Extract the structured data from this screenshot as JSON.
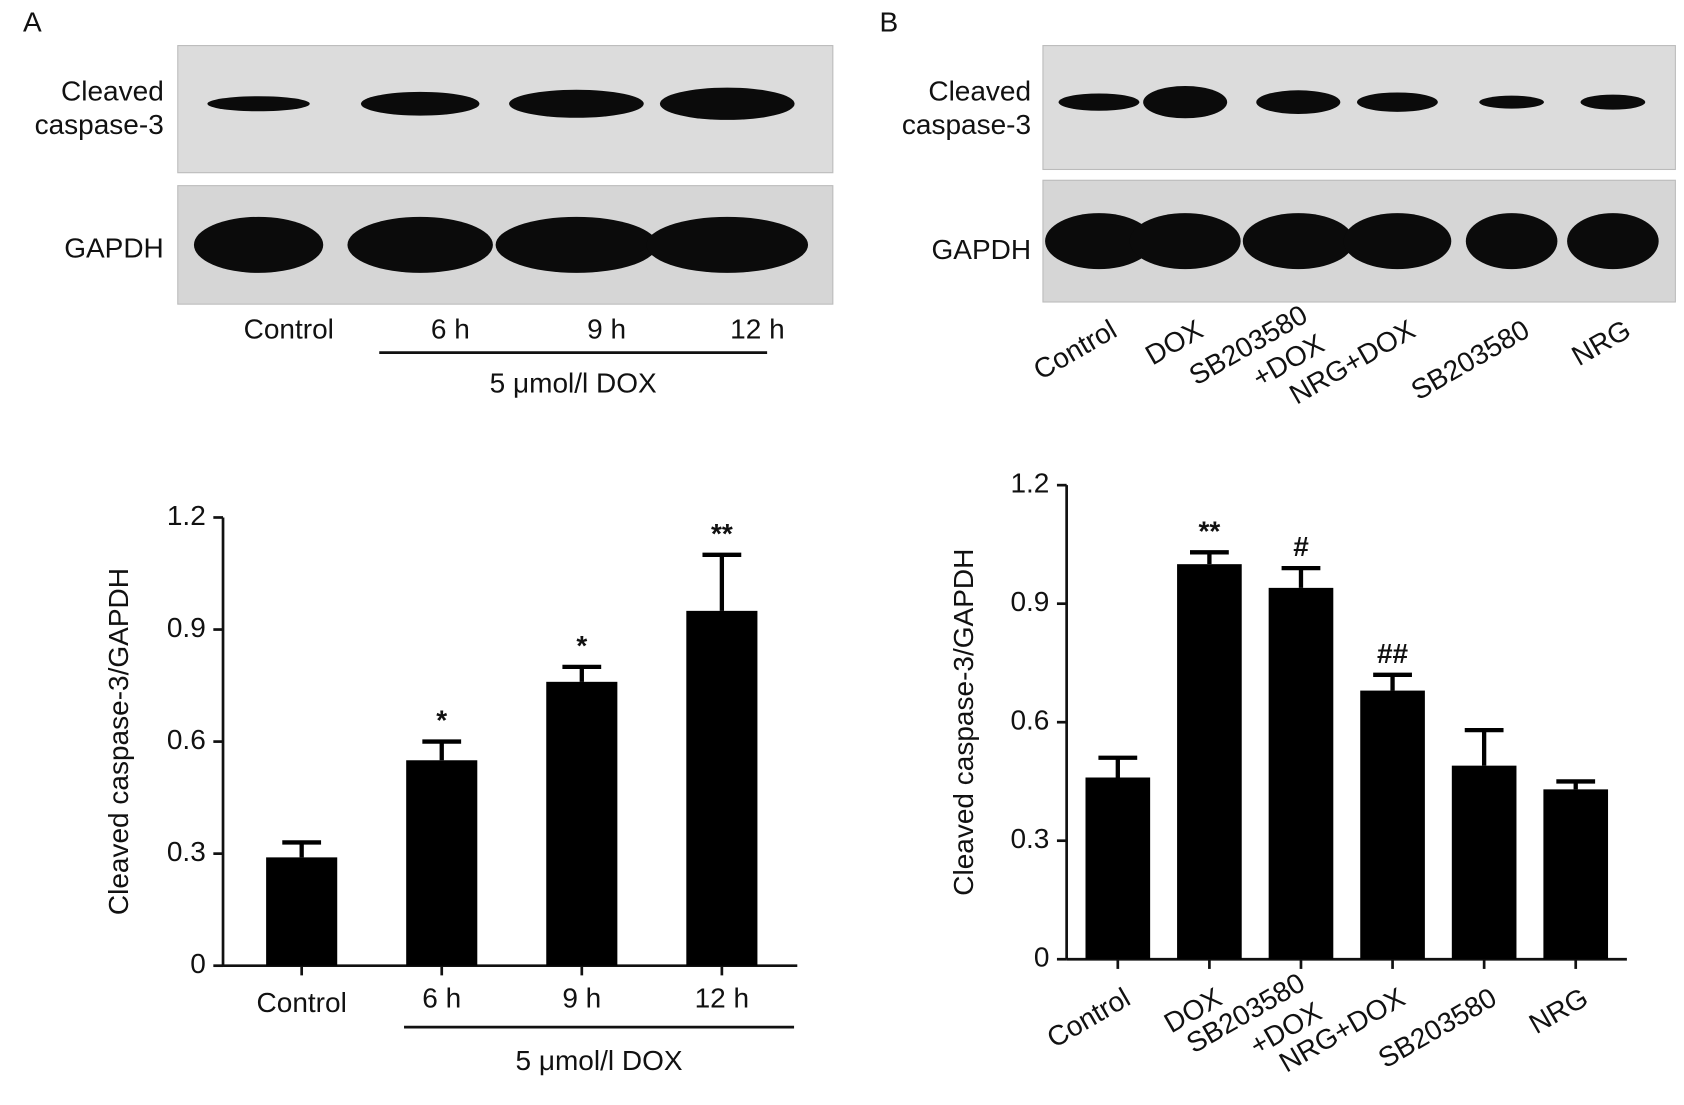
{
  "chart_data": [
    {
      "type": "bar",
      "panel": "A",
      "ylabel": "Cleaved caspase-3/GAPDH",
      "categories": [
        "Control",
        "6 h",
        "9 h",
        "12 h"
      ],
      "values": [
        0.29,
        0.55,
        0.76,
        0.95
      ],
      "errors": [
        0.04,
        0.05,
        0.04,
        0.15
      ],
      "significance": [
        null,
        "*",
        "*",
        "**"
      ],
      "group_label": "5 μmol/l DOX",
      "color": "#000000",
      "ylim": [
        0,
        1.2
      ],
      "yticks": [
        0,
        0.3,
        0.6,
        0.9,
        1.2
      ]
    },
    {
      "type": "bar",
      "panel": "B",
      "ylabel": "Cleaved caspase-3/GAPDH",
      "categories": [
        "Control",
        "DOX",
        "SB203580\n+DOX",
        "NRG+DOX",
        "SB203580",
        "NRG"
      ],
      "values": [
        0.46,
        1.0,
        0.94,
        0.68,
        0.49,
        0.43
      ],
      "errors": [
        0.05,
        0.03,
        0.05,
        0.04,
        0.09,
        0.02
      ],
      "significance": [
        null,
        "**",
        "#",
        "##",
        null,
        null
      ],
      "color": "#000000",
      "ylim": [
        0,
        1.2
      ],
      "yticks": [
        0,
        0.3,
        0.6,
        0.9,
        1.2
      ]
    }
  ],
  "blots": [
    {
      "panel": "A",
      "rows": [
        "Cleaved\ncaspase-3",
        "GAPDH"
      ],
      "lanes": [
        "Control",
        "6 h",
        "9 h",
        "12 h"
      ],
      "group_label": "5 μmol/l DOX"
    },
    {
      "panel": "B",
      "rows": [
        "Cleaved\ncaspase-3",
        "GAPDH"
      ],
      "lanes": [
        "Control",
        "DOX",
        "SB203580\n+DOX",
        "NRG+DOX",
        "SB203580",
        "NRG"
      ]
    }
  ]
}
